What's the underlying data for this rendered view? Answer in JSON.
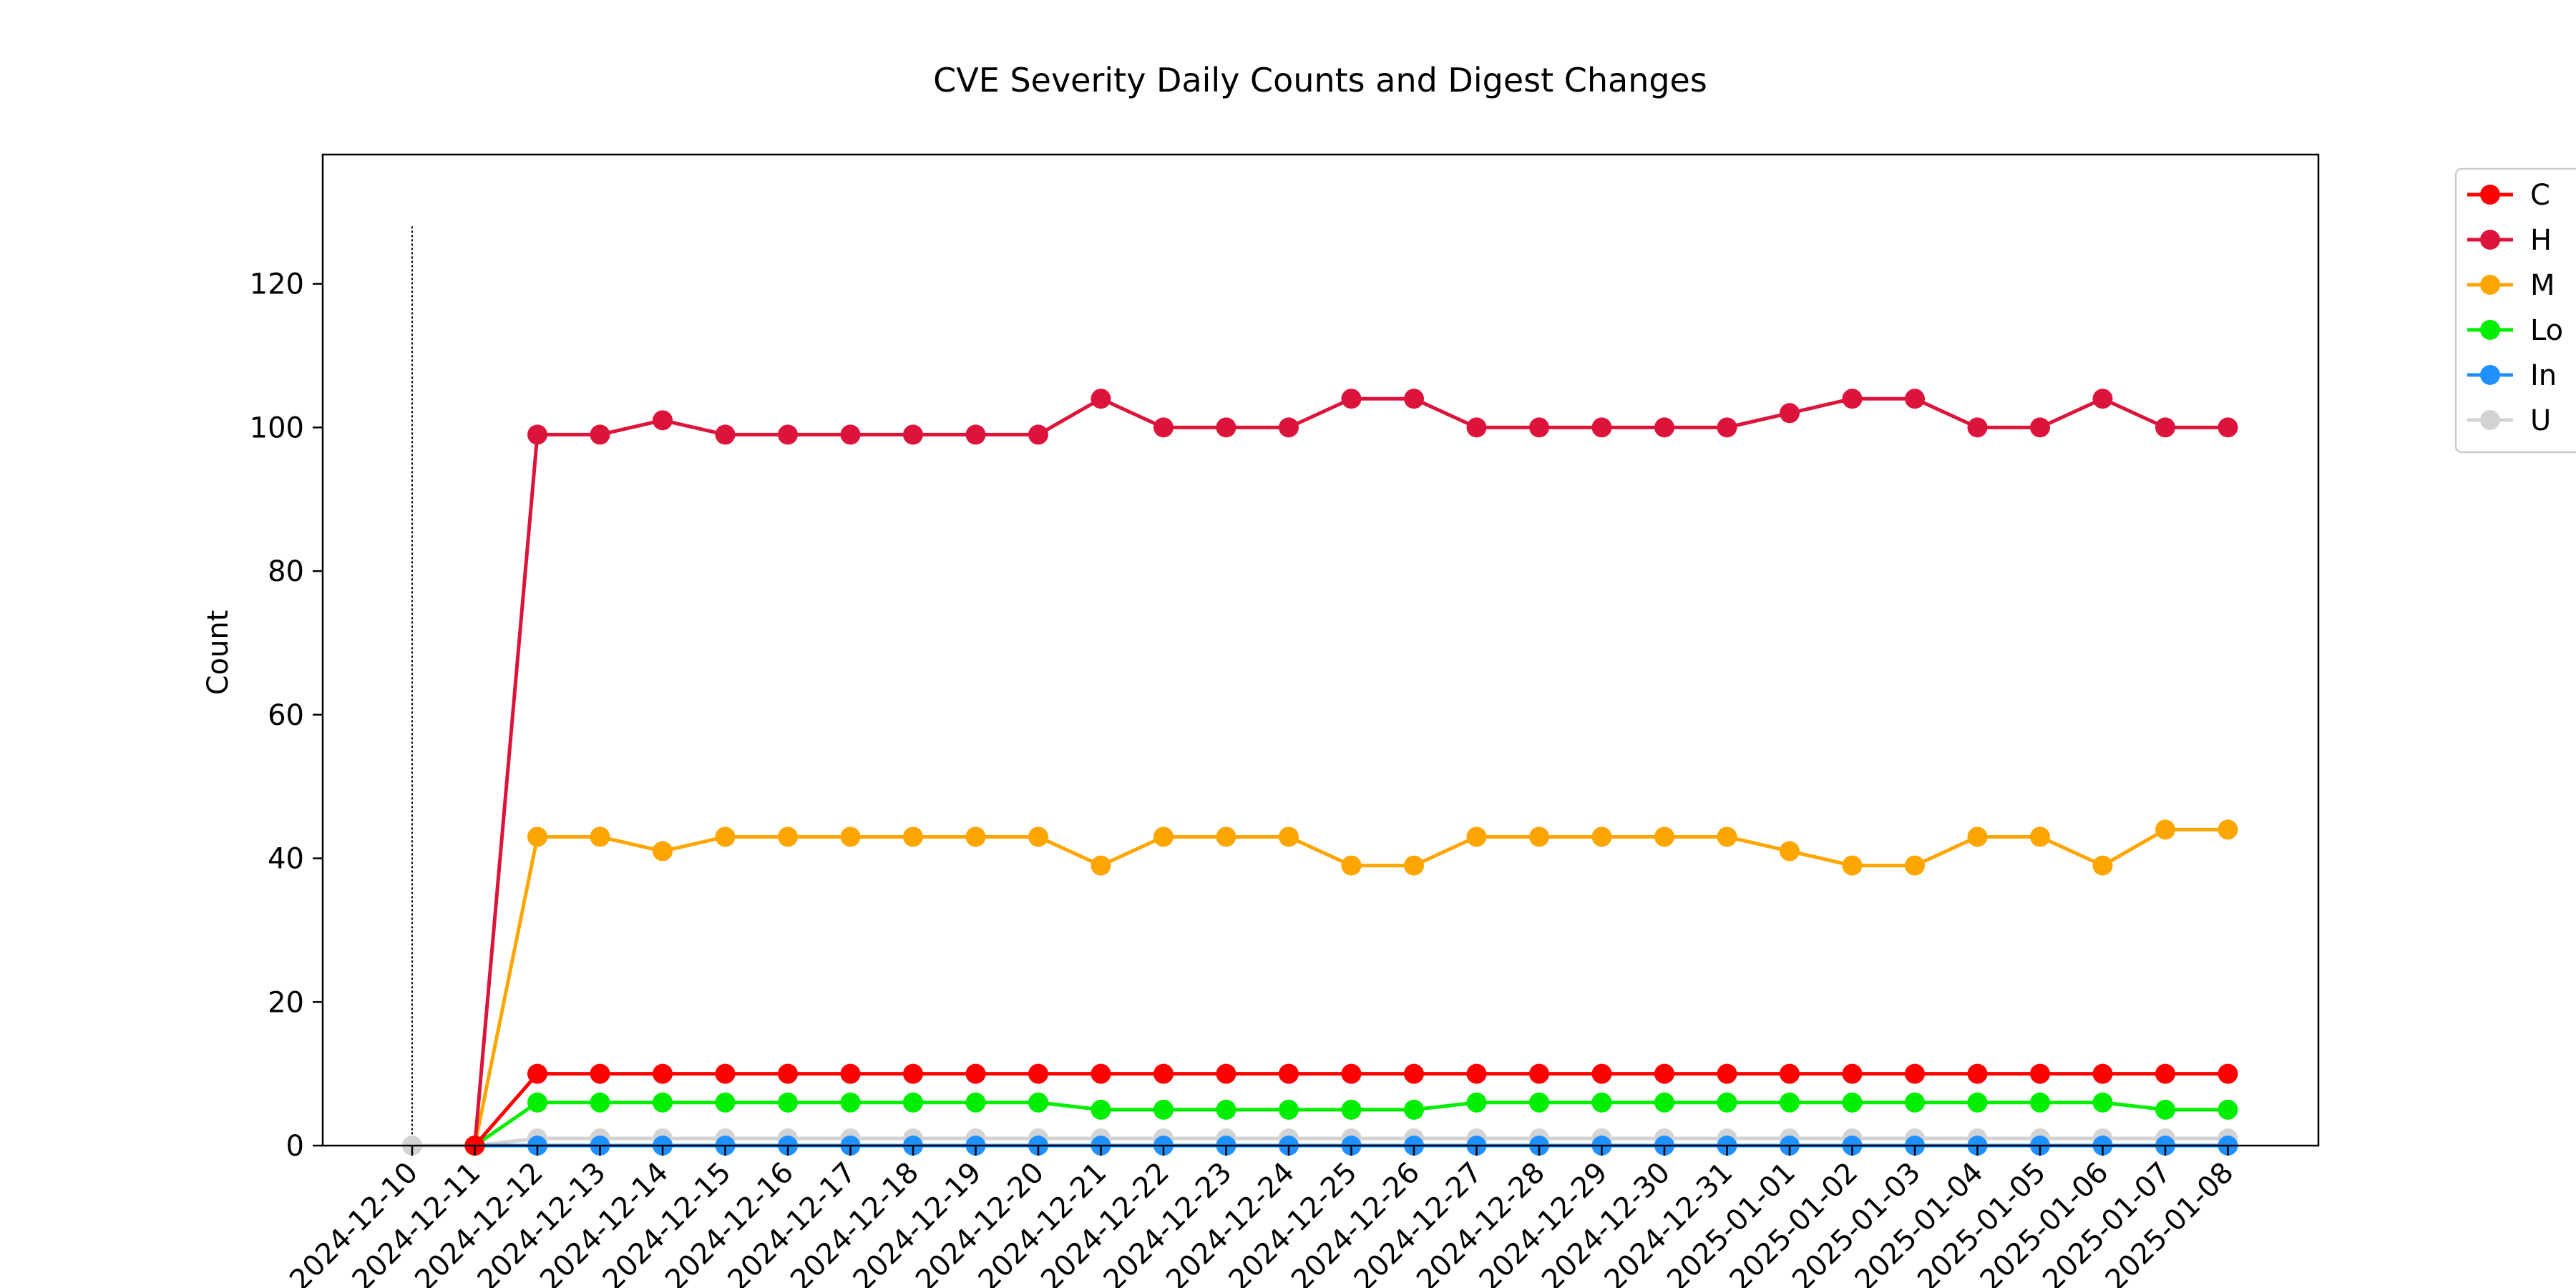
{
  "chart_data": {
    "type": "line",
    "title": "CVE Severity Daily Counts and Digest Changes",
    "xlabel": "",
    "ylabel": "Count",
    "ylim": [
      0,
      138
    ],
    "yticks": [
      0,
      20,
      40,
      60,
      80,
      100,
      120
    ],
    "grid": false,
    "legend_position": "outside-right",
    "categories": [
      "2024-12-10",
      "2024-12-11",
      "2024-12-12",
      "2024-12-13",
      "2024-12-14",
      "2024-12-15",
      "2024-12-16",
      "2024-12-17",
      "2024-12-18",
      "2024-12-19",
      "2024-12-20",
      "2024-12-21",
      "2024-12-22",
      "2024-12-23",
      "2024-12-24",
      "2024-12-25",
      "2024-12-26",
      "2024-12-27",
      "2024-12-28",
      "2024-12-29",
      "2024-12-30",
      "2024-12-31",
      "2025-01-01",
      "2025-01-02",
      "2025-01-03",
      "2025-01-04",
      "2025-01-05",
      "2025-01-06",
      "2025-01-07",
      "2025-01-08"
    ],
    "series": [
      {
        "name": "C",
        "color": "#ff0000",
        "values": [
          null,
          0,
          10,
          10,
          10,
          10,
          10,
          10,
          10,
          10,
          10,
          10,
          10,
          10,
          10,
          10,
          10,
          10,
          10,
          10,
          10,
          10,
          10,
          10,
          10,
          10,
          10,
          10,
          10,
          10
        ]
      },
      {
        "name": "H",
        "color": "#dc143c",
        "values": [
          null,
          0,
          99,
          99,
          101,
          99,
          99,
          99,
          99,
          99,
          99,
          104,
          100,
          100,
          100,
          104,
          104,
          100,
          100,
          100,
          100,
          100,
          102,
          104,
          104,
          100,
          100,
          104,
          100,
          100
        ]
      },
      {
        "name": "M",
        "color": "#ffa500",
        "values": [
          null,
          0,
          43,
          43,
          41,
          43,
          43,
          43,
          43,
          43,
          43,
          39,
          43,
          43,
          43,
          39,
          39,
          43,
          43,
          43,
          43,
          43,
          41,
          39,
          39,
          43,
          43,
          39,
          44,
          44
        ]
      },
      {
        "name": "Lo",
        "color": "#00ee00",
        "values": [
          null,
          0,
          6,
          6,
          6,
          6,
          6,
          6,
          6,
          6,
          6,
          5,
          5,
          5,
          5,
          5,
          5,
          6,
          6,
          6,
          6,
          6,
          6,
          6,
          6,
          6,
          6,
          6,
          5,
          5
        ]
      },
      {
        "name": "In",
        "color": "#1e90ff",
        "values": [
          null,
          0,
          0,
          0,
          0,
          0,
          0,
          0,
          0,
          0,
          0,
          0,
          0,
          0,
          0,
          0,
          0,
          0,
          0,
          0,
          0,
          0,
          0,
          0,
          0,
          0,
          0,
          0,
          0,
          0
        ]
      },
      {
        "name": "U",
        "color": "#d3d3d3",
        "values": [
          0,
          0,
          1,
          1,
          1,
          1,
          1,
          1,
          1,
          1,
          1,
          1,
          1,
          1,
          1,
          1,
          1,
          1,
          1,
          1,
          1,
          1,
          1,
          1,
          1,
          1,
          1,
          1,
          1,
          1
        ]
      }
    ],
    "annotations": [
      {
        "type": "vertical-line",
        "x": "2024-12-10",
        "style": "dotted",
        "y_top": 128
      }
    ]
  }
}
